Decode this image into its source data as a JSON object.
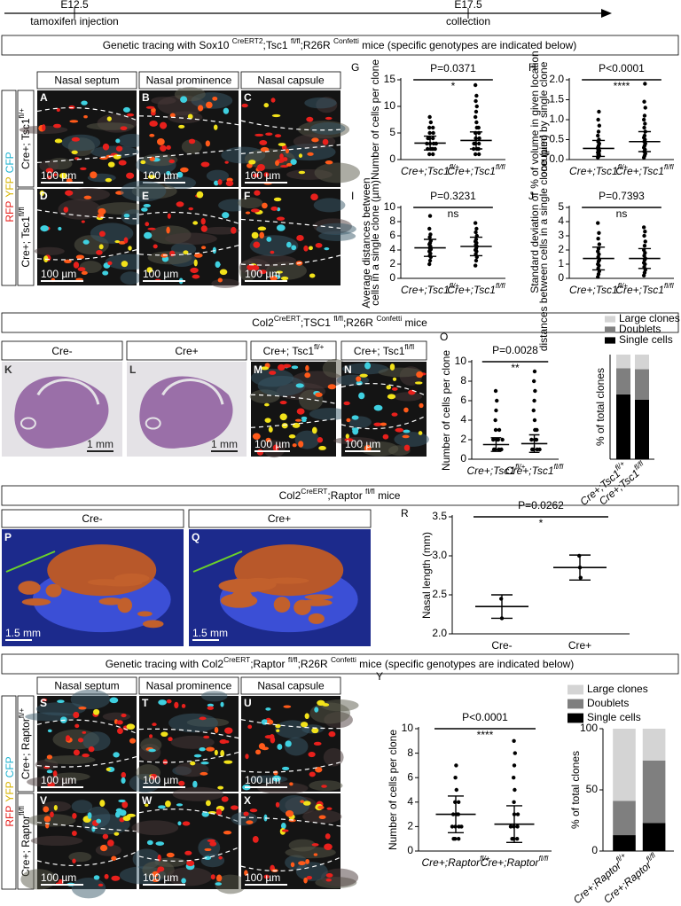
{
  "timeline": {
    "start": "E12.5",
    "start_note": "tamoxifen injection",
    "end": "E17.5",
    "end_note": "collection"
  },
  "sox10": {
    "title": [
      "Genetic tracing with Sox10 ",
      "CreERT2",
      ";Tsc1 ",
      "fl/fl",
      ";R26R ",
      "Confetti",
      " mice (specific genotypes are indicated below)"
    ],
    "columns": [
      "Nasal septum",
      "Nasal prominence",
      "Nasal capsule"
    ],
    "channels": [
      "RFP",
      "YFP",
      "CFP"
    ],
    "rows": [
      [
        "Cre+; Tsc1",
        "fl/+"
      ],
      [
        "Cre+; Tsc1",
        "fl/fl"
      ]
    ],
    "letters": [
      "A",
      "B",
      "C",
      "D",
      "E",
      "F"
    ],
    "scale": "100 µm"
  },
  "col2tsc": {
    "title": [
      "Col2",
      "CreERT",
      ";TSC1 ",
      "fl/fl",
      ";R26R ",
      "Confetti",
      " mice"
    ],
    "headers": [
      [
        "Cre-"
      ],
      [
        "Cre+"
      ],
      [
        "Cre+; Tsc1",
        "fl/+"
      ],
      [
        "Cre+; Tsc1",
        "fl/fl"
      ]
    ],
    "letters": [
      "K",
      "L",
      "M",
      "N"
    ],
    "scale_bars": [
      "1 mm",
      "1 mm",
      "100 µm",
      "100 µm"
    ]
  },
  "raptor3d": {
    "title": [
      "Col2",
      "CreERT",
      ";Raptor ",
      "fl/fl",
      " mice"
    ],
    "headers": [
      "Cre-",
      "Cre+"
    ],
    "letters": [
      "P",
      "Q"
    ],
    "scale": "1.5 mm"
  },
  "col2raptor": {
    "title": [
      "Genetic tracing with Col2",
      "CreERT",
      ";Raptor ",
      "fl/fl",
      ";R26R ",
      "Confetti",
      " mice (specific genotypes are indicated below)"
    ],
    "columns": [
      "Nasal septum",
      "Nasal prominence",
      "Nasal capsule"
    ],
    "channels": [
      "RFP",
      "YFP",
      "CFP"
    ],
    "rows": [
      [
        "Cre+; Raptor",
        "fl/+"
      ],
      [
        "Cre+; Raptor",
        "fl/fl"
      ]
    ],
    "letters": [
      "S",
      "T",
      "U",
      "V",
      "W",
      "X"
    ],
    "scale": "100 µm"
  },
  "charts": {
    "G": {
      "type": "dot",
      "letter": "G",
      "ylabel": [
        "Number of cells per clone"
      ],
      "ylim": [
        0,
        15
      ],
      "yticks": [
        0,
        5,
        10,
        15
      ],
      "p": "P=0.0371",
      "sig": "*",
      "groups": [
        {
          "label": [
            "Cre+;Tsc1",
            "fl/+"
          ],
          "points": [
            1,
            1,
            2,
            2,
            2,
            2,
            3,
            3,
            3,
            3,
            4,
            4,
            4,
            5,
            5,
            6,
            6,
            7,
            8
          ],
          "mean": 3.1,
          "sd": 1.3
        },
        {
          "label": [
            "Cre+;Tsc1",
            "fl/fl"
          ],
          "points": [
            1,
            1,
            2,
            2,
            2,
            3,
            3,
            3,
            4,
            4,
            5,
            5,
            6,
            6,
            7,
            8,
            9,
            10,
            11,
            12,
            14
          ],
          "mean": 3.6,
          "sd": 1.6
        }
      ]
    },
    "H": {
      "type": "dot",
      "letter": "H",
      "ylabel": [
        "% of volume in given location",
        "occupied by single clone"
      ],
      "ylim": [
        0,
        2
      ],
      "yticks": [
        {
          "value": 0,
          "label": "0.0"
        },
        {
          "value": 0.5,
          "label": "0.5"
        },
        {
          "value": 1,
          "label": "1.0"
        },
        {
          "value": 1.5,
          "label": "1.5"
        },
        {
          "value": 2,
          "label": "2.0"
        }
      ],
      "p": "P<0.0001",
      "sig": "****",
      "groups": [
        {
          "label": [
            "Cre+;Tsc1",
            "fl/+"
          ],
          "points": [
            0.05,
            0.08,
            0.1,
            0.12,
            0.15,
            0.18,
            0.2,
            0.22,
            0.25,
            0.28,
            0.3,
            0.35,
            0.4,
            0.45,
            0.5,
            0.6,
            0.7,
            0.85,
            1.0,
            1.2
          ],
          "mean": 0.28,
          "sd": 0.2
        },
        {
          "label": [
            "Cre+;Tsc1",
            "fl/fl"
          ],
          "points": [
            0.05,
            0.1,
            0.15,
            0.2,
            0.25,
            0.3,
            0.35,
            0.4,
            0.45,
            0.5,
            0.55,
            0.6,
            0.7,
            0.8,
            0.9,
            1.0,
            1.1,
            1.3,
            1.45,
            1.9
          ],
          "mean": 0.45,
          "sd": 0.25
        }
      ]
    },
    "I": {
      "type": "dot",
      "letter": "I",
      "ylabel": [
        "Average distances between",
        "cells in a single clone (µm)"
      ],
      "ylim": [
        0,
        10
      ],
      "yticks": [
        0,
        2,
        4,
        6,
        8,
        10
      ],
      "p": "P=0.3231",
      "sig": "ns",
      "groups": [
        {
          "label": [
            "Cre+;Tsc1",
            "fl/+"
          ],
          "points": [
            2,
            2.5,
            3,
            3.2,
            3.5,
            3.8,
            4,
            4.1,
            4.3,
            4.5,
            4.8,
            5,
            5.3,
            5.8,
            6.2,
            7,
            8.8
          ],
          "mean": 4.3,
          "sd": 1.2
        },
        {
          "label": [
            "Cre+;Tsc1",
            "fl/fl"
          ],
          "points": [
            1.8,
            2.5,
            3,
            3.4,
            3.8,
            4,
            4.2,
            4.5,
            4.7,
            5,
            5.2,
            5.5,
            6,
            6.5,
            7,
            7.8
          ],
          "mean": 4.5,
          "sd": 1.3
        }
      ]
    },
    "J": {
      "type": "dot",
      "letter": "J",
      "ylabel": [
        "Standard deviation of",
        "distances between cells in a single clone (µm)"
      ],
      "ylim": [
        0,
        5
      ],
      "yticks": [
        0,
        1,
        2,
        3,
        4,
        5
      ],
      "p": "P=0.7393",
      "sig": "ns",
      "groups": [
        {
          "label": [
            "Cre+;Tsc1",
            "fl/+"
          ],
          "points": [
            0.1,
            0.3,
            0.5,
            0.7,
            0.9,
            1,
            1.2,
            1.3,
            1.5,
            1.7,
            1.9,
            2.1,
            2.4,
            2.8,
            3.2,
            3.9
          ],
          "mean": 1.4,
          "sd": 0.8
        },
        {
          "label": [
            "Cre+;Tsc1",
            "fl/fl"
          ],
          "points": [
            0.2,
            0.4,
            0.6,
            0.8,
            1,
            1.1,
            1.3,
            1.4,
            1.6,
            1.8,
            2,
            2.3,
            2.6,
            3,
            3.3,
            3.6
          ],
          "mean": 1.4,
          "sd": 0.7
        }
      ]
    },
    "O": {
      "type": "dot",
      "letter": "O",
      "ylabel": [
        "Number of cells per clone"
      ],
      "ylim": [
        0,
        10
      ],
      "yticks": [
        0,
        2,
        4,
        6,
        8,
        10
      ],
      "p": "P=0.0028",
      "sig": "**",
      "groups": [
        {
          "label": [
            "Cre+;Tsc1",
            "fl/+"
          ],
          "points": [
            1,
            1,
            1,
            1,
            2,
            2,
            2,
            2,
            3,
            3,
            4,
            5,
            6,
            7
          ],
          "mean": 1.5,
          "sd": 0.7
        },
        {
          "label": [
            "Cre+;Tsc1",
            "fl/fl"
          ],
          "points": [
            1,
            1,
            1,
            1,
            2,
            2,
            2,
            3,
            3,
            4,
            5,
            6,
            7,
            8,
            9
          ],
          "mean": 1.6,
          "sd": 0.9
        }
      ]
    },
    "O2": {
      "type": "stacked_bar",
      "ylabel": "% of total clones",
      "ylim": [
        0,
        100
      ],
      "categories": [
        [
          "Cre+;Tsc1",
          "fl/+"
        ],
        [
          "Cre+;Tsc1",
          "fl/fl"
        ]
      ],
      "series": [
        {
          "name": "Single cells",
          "color": "#000000",
          "values": [
            62,
            57
          ]
        },
        {
          "name": "Doublets",
          "color": "#7f7f7f",
          "values": [
            25,
            29
          ]
        },
        {
          "name": "Large clones",
          "color": "#d4d4d4",
          "values": [
            13,
            14
          ]
        }
      ]
    },
    "R": {
      "type": "dot",
      "letter": "R",
      "ylabel": [
        "Nasal length (mm)"
      ],
      "ylim": [
        2,
        3.5
      ],
      "yticks": [
        {
          "value": 2,
          "label": "2.0"
        },
        {
          "value": 2.5,
          "label": "2.5"
        },
        {
          "value": 3,
          "label": "3.0"
        },
        {
          "value": 3.5,
          "label": "3.5"
        }
      ],
      "p": "P=0.0262",
      "sig": "*",
      "groups": [
        {
          "label": [
            "Cre-"
          ],
          "points": [
            2.45,
            2.2
          ],
          "mean": 2.35,
          "sd": 0.15
        },
        {
          "label": [
            "Cre+"
          ],
          "points": [
            3.0,
            2.85,
            2.72
          ],
          "mean": 2.85,
          "sd": 0.16
        }
      ]
    },
    "Y": {
      "type": "dot",
      "letter": "Y",
      "ylabel": [
        "Number of cells per clone"
      ],
      "ylim": [
        0,
        10
      ],
      "yticks": [
        0,
        2,
        4,
        6,
        8,
        10
      ],
      "p": "P<0.0001",
      "sig": "****",
      "groups": [
        {
          "label": [
            "Cre+;Raptor",
            "fl/+"
          ],
          "points": [
            1,
            1,
            1,
            2,
            2,
            2,
            2,
            3,
            3,
            3,
            4,
            4,
            5,
            6,
            7
          ],
          "mean": 3.0,
          "sd": 1.5
        },
        {
          "label": [
            "Cre+;Raptor",
            "fl/fl"
          ],
          "points": [
            1,
            1,
            1,
            2,
            2,
            2,
            3,
            3,
            4,
            5,
            6,
            7,
            8,
            9
          ],
          "mean": 2.2,
          "sd": 1.5
        }
      ]
    },
    "Y2": {
      "type": "stacked_bar",
      "ylabel": "% of total clones",
      "ylim": [
        0,
        100
      ],
      "yticks": [
        0,
        50,
        100
      ],
      "categories": [
        [
          "Cre+;Raptor",
          "fl/+"
        ],
        [
          "Cre+;Raptor",
          "fl/fl"
        ]
      ],
      "series": [
        {
          "name": "Single cells",
          "color": "#000000",
          "values": [
            13,
            23
          ]
        },
        {
          "name": "Doublets",
          "color": "#7f7f7f",
          "values": [
            28,
            51
          ]
        },
        {
          "name": "Large clones",
          "color": "#d4d4d4",
          "values": [
            59,
            26
          ]
        }
      ]
    }
  }
}
